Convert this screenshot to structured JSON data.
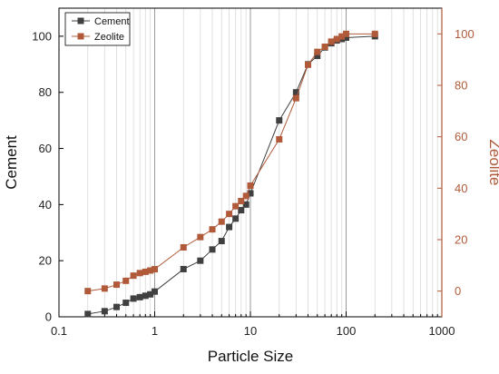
{
  "chart_data": {
    "type": "line",
    "x_scale": "log",
    "xlabel": "Particle Size",
    "ylabel_left": "Cement",
    "ylabel_right": "Zeolite",
    "xlim": [
      0.1,
      1000
    ],
    "ylim_left": [
      0,
      110
    ],
    "ylim_right": [
      -10,
      110
    ],
    "x_ticks": [
      0.1,
      1,
      10,
      100,
      1000
    ],
    "x_tick_labels": [
      "0.1",
      "1",
      "10",
      "100",
      "1000"
    ],
    "y_left_ticks": [
      0,
      20,
      40,
      60,
      80,
      100
    ],
    "y_left_tick_labels": [
      "0",
      "20",
      "40",
      "60",
      "80",
      "100"
    ],
    "y_right_ticks": [
      0,
      20,
      40,
      60,
      80,
      100
    ],
    "y_right_tick_labels": [
      "0",
      "20",
      "40",
      "60",
      "80",
      "100"
    ],
    "grid": "vertical (log decades and minor)",
    "legend_position": "top-left",
    "series": [
      {
        "name": "Cement",
        "axis": "left",
        "color": "#404040",
        "marker": "square",
        "x": [
          0.2,
          0.3,
          0.4,
          0.5,
          0.6,
          0.7,
          0.8,
          0.9,
          1,
          2,
          3,
          4,
          5,
          6,
          7,
          8,
          9,
          10,
          20,
          30,
          40,
          50,
          60,
          70,
          80,
          90,
          100,
          200
        ],
        "y": [
          1,
          2,
          3.5,
          5,
          6.5,
          7,
          7.5,
          8,
          9,
          17,
          20,
          24,
          27,
          32,
          35,
          38,
          40,
          44,
          70,
          80,
          90,
          93,
          96,
          97.5,
          98.5,
          99,
          99.5,
          100
        ]
      },
      {
        "name": "Zeolite",
        "axis": "right",
        "color": "#b05a3a",
        "marker": "square",
        "x": [
          0.2,
          0.3,
          0.4,
          0.5,
          0.6,
          0.7,
          0.8,
          0.9,
          1,
          2,
          3,
          4,
          5,
          6,
          7,
          8,
          9,
          10,
          20,
          30,
          40,
          50,
          60,
          70,
          80,
          90,
          100,
          200
        ],
        "y": [
          0,
          1,
          2.5,
          4,
          6,
          7,
          7.5,
          8,
          8.5,
          17,
          21,
          24,
          27,
          30,
          33,
          35,
          37,
          41,
          59,
          75,
          88,
          93,
          95,
          97,
          98,
          99,
          100,
          100
        ]
      }
    ]
  }
}
